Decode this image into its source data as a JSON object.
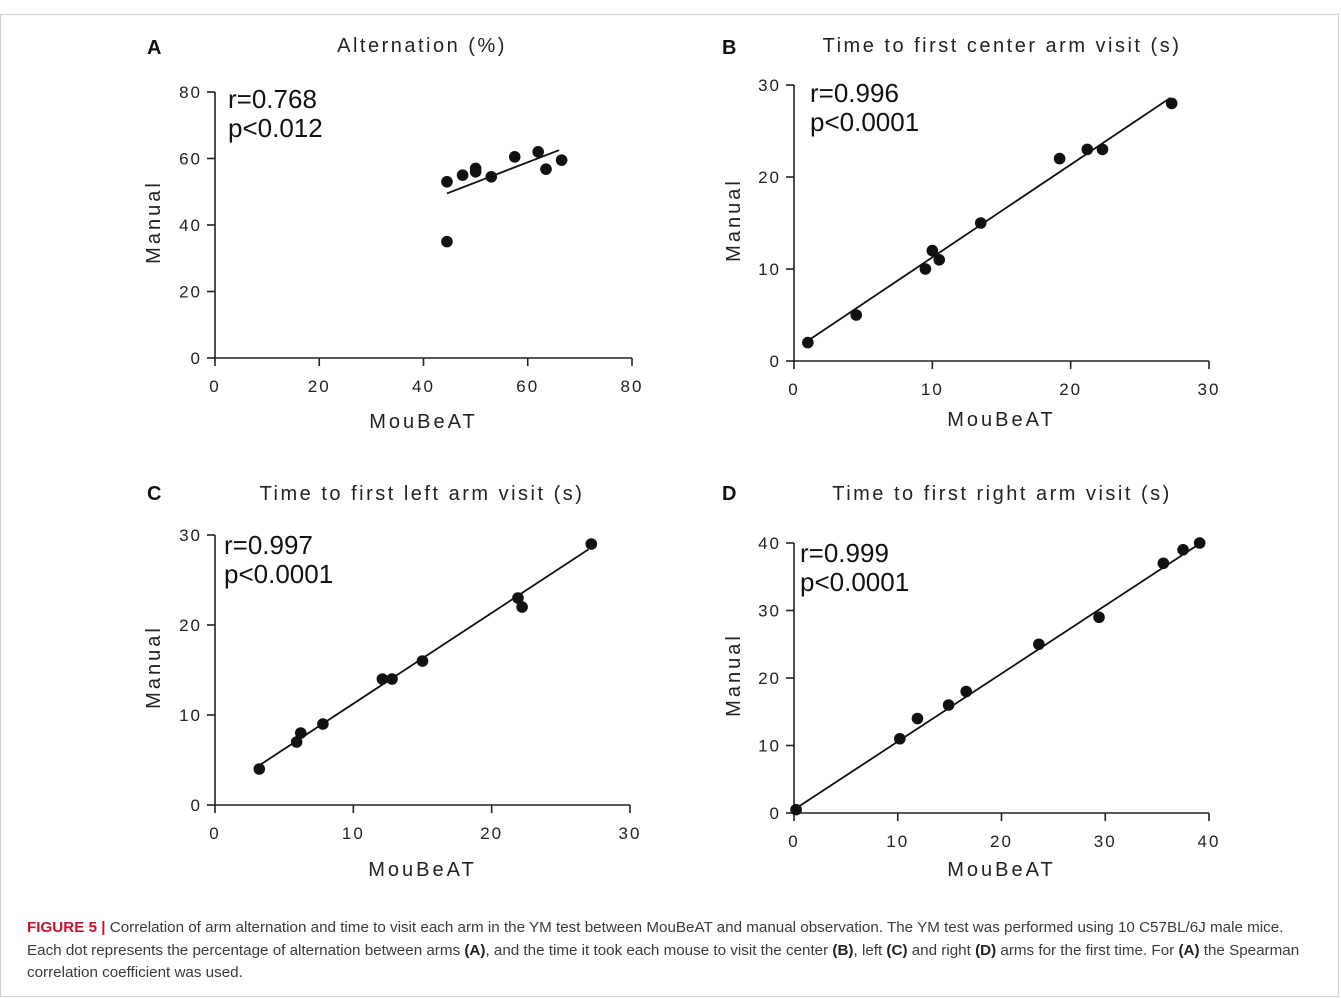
{
  "chart_data": [
    {
      "panel": "A",
      "type": "scatter",
      "title": "Alternation (%)",
      "xlabel": "MouBeAT",
      "ylabel": "Manual",
      "xlim": [
        0,
        80
      ],
      "ylim": [
        0,
        80
      ],
      "xticks": [
        "0",
        "20",
        "40",
        "60",
        "80"
      ],
      "yticks": [
        "0",
        "20",
        "40",
        "60",
        "80"
      ],
      "stats": [
        "r=0.768",
        "p<0.012"
      ],
      "points": [
        [
          44.5,
          35
        ],
        [
          44.5,
          53
        ],
        [
          47.5,
          55
        ],
        [
          50,
          56
        ],
        [
          50,
          57
        ],
        [
          53,
          54.5
        ],
        [
          57.5,
          60.5
        ],
        [
          62,
          62
        ],
        [
          63.5,
          56.8
        ],
        [
          66.5,
          59.5
        ]
      ],
      "fit": [
        [
          44.5,
          49.5
        ],
        [
          66,
          62.5
        ]
      ],
      "grid": false
    },
    {
      "panel": "B",
      "type": "scatter",
      "title": "Time to first center arm visit (s)",
      "xlabel": "MouBeAT",
      "ylabel": "Manual",
      "xlim": [
        0,
        30
      ],
      "ylim": [
        0,
        30
      ],
      "xticks": [
        "0",
        "10",
        "20",
        "30"
      ],
      "yticks": [
        "0",
        "10",
        "20",
        "30"
      ],
      "stats": [
        "r=0.996",
        "p<0.0001"
      ],
      "points": [
        [
          1,
          2
        ],
        [
          4.5,
          5
        ],
        [
          9.5,
          10
        ],
        [
          10,
          12
        ],
        [
          10.5,
          11
        ],
        [
          13.5,
          15
        ],
        [
          19.2,
          22
        ],
        [
          21.2,
          23
        ],
        [
          22.3,
          23
        ],
        [
          27.3,
          28
        ]
      ],
      "fit": [
        [
          0.8,
          2
        ],
        [
          27.2,
          28.6
        ]
      ],
      "grid": false
    },
    {
      "panel": "C",
      "type": "scatter",
      "title": "Time to first left arm visit (s)",
      "xlabel": "MouBeAT",
      "ylabel": "Manual",
      "xlim": [
        0,
        30
      ],
      "ylim": [
        0,
        30
      ],
      "xticks": [
        "0",
        "10",
        "20",
        "30"
      ],
      "yticks": [
        "0",
        "10",
        "20",
        "30"
      ],
      "stats": [
        "r=0.997",
        "p<0.0001"
      ],
      "points": [
        [
          3.2,
          4
        ],
        [
          5.9,
          7
        ],
        [
          6.2,
          8
        ],
        [
          7.8,
          9
        ],
        [
          12.1,
          14
        ],
        [
          12.8,
          14
        ],
        [
          15,
          16
        ],
        [
          21.9,
          23
        ],
        [
          22.2,
          22
        ],
        [
          27.2,
          29
        ]
      ],
      "fit": [
        [
          3,
          4.2
        ],
        [
          27,
          28.4
        ]
      ],
      "grid": false
    },
    {
      "panel": "D",
      "type": "scatter",
      "title": "Time to first right arm visit (s)",
      "xlabel": "MouBeAT",
      "ylabel": "Manual",
      "xlim": [
        0,
        40
      ],
      "ylim": [
        0,
        40
      ],
      "xticks": [
        "0",
        "10",
        "20",
        "30",
        "40"
      ],
      "yticks": [
        "0",
        "10",
        "20",
        "30",
        "40"
      ],
      "stats": [
        "r=0.999",
        "p<0.0001"
      ],
      "points": [
        [
          0.2,
          0.5
        ],
        [
          10.2,
          11
        ],
        [
          11.9,
          14
        ],
        [
          14.9,
          16
        ],
        [
          16.6,
          18
        ],
        [
          23.6,
          25
        ],
        [
          29.4,
          29
        ],
        [
          35.6,
          37
        ],
        [
          37.5,
          39
        ],
        [
          39.1,
          40
        ]
      ],
      "fit": [
        [
          0,
          0.5
        ],
        [
          39,
          39.8
        ]
      ],
      "grid": false
    }
  ],
  "caption": {
    "label": "FIGURE 5 |",
    "segments": [
      {
        "t": " Correlation of arm alternation and time to visit each arm in the YM test between MouBeAT and manual observation. The YM test was performed using 10 C57BL/6J male mice. Each dot represents the percentage of alternation between arms ",
        "b": false
      },
      {
        "t": "(A)",
        "b": true
      },
      {
        "t": ", and the time it took each mouse to visit the center ",
        "b": false
      },
      {
        "t": "(B)",
        "b": true
      },
      {
        "t": ", left ",
        "b": false
      },
      {
        "t": "(C)",
        "b": true
      },
      {
        "t": " and right ",
        "b": false
      },
      {
        "t": "(D)",
        "b": true
      },
      {
        "t": " arms for the first time. For ",
        "b": false
      },
      {
        "t": "(A)",
        "b": true
      },
      {
        "t": " the Spearman correlation coefficient was used.",
        "b": false
      }
    ]
  }
}
